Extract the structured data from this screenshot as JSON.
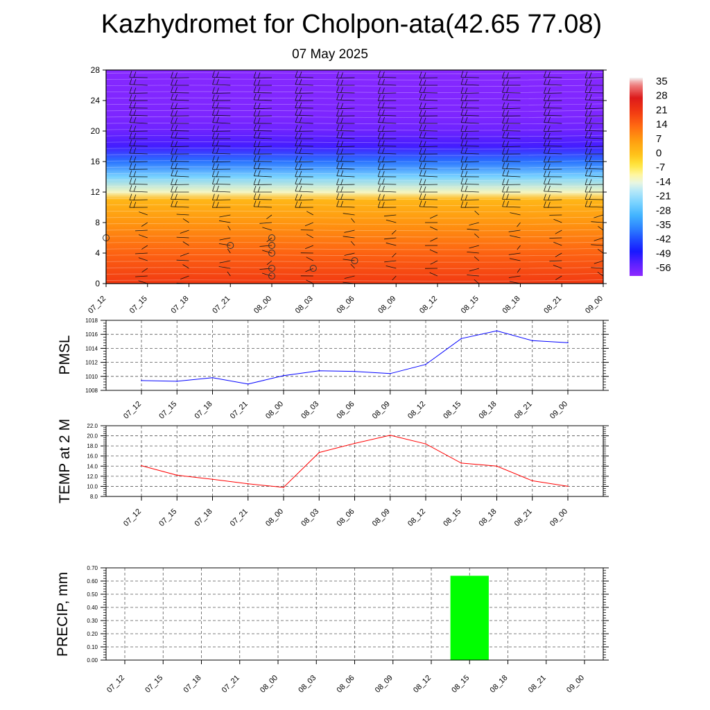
{
  "title": "Kazhydromet for Cholpon-ata(42.65 77.08)",
  "date": "07 May 2025",
  "colors": {
    "pmsl_line": "#0000ff",
    "temp_line": "#ff0000",
    "precip_bar": "#00ff00",
    "grid": "#555555",
    "axis": "#000000"
  },
  "chart_data": [
    {
      "type": "heatmap",
      "title": "",
      "x_labels": [
        "07_12",
        "07_15",
        "07_18",
        "07_21",
        "08_00",
        "08_03",
        "08_06",
        "08_09",
        "08_12",
        "08_15",
        "08_18",
        "08_21",
        "09_00"
      ],
      "y_ticks": [
        0,
        4,
        8,
        12,
        16,
        20,
        24,
        28
      ],
      "ylim": [
        0,
        28
      ],
      "colorbar": {
        "labels": [
          "35",
          "28",
          "21",
          "14",
          "7",
          "0",
          "-7",
          "-14",
          "-21",
          "-28",
          "-35",
          "-42",
          "-49",
          "-56"
        ],
        "range": [
          -60,
          38
        ]
      },
      "temperature_profile": [
        {
          "y": 0,
          "t": 21
        },
        {
          "y": 4,
          "t": 15
        },
        {
          "y": 8,
          "t": 8
        },
        {
          "y": 11,
          "t": 2
        },
        {
          "y": 12,
          "t": -12
        },
        {
          "y": 14,
          "t": -24
        },
        {
          "y": 16,
          "t": -38
        },
        {
          "y": 18,
          "t": -52
        },
        {
          "y": 20,
          "t": -56
        },
        {
          "y": 22,
          "t": -58
        },
        {
          "y": 28,
          "t": -59
        }
      ],
      "wind_barbs": true,
      "cloud_markers": [
        {
          "x": "07_12",
          "y": 6
        },
        {
          "x": "07_21",
          "y": 5
        },
        {
          "x": "08_00",
          "y": 6
        },
        {
          "x": "08_00",
          "y": 5
        },
        {
          "x": "08_00",
          "y": 4
        },
        {
          "x": "08_00",
          "y": 2
        },
        {
          "x": "08_00",
          "y": 1
        },
        {
          "x": "08_03",
          "y": 2
        },
        {
          "x": "08_06",
          "y": 3
        }
      ]
    },
    {
      "type": "line",
      "ylabel": "PMSL",
      "categories": [
        "07_12",
        "07_15",
        "07_18",
        "07_21",
        "08_00",
        "08_03",
        "08_06",
        "08_09",
        "08_12",
        "08_15",
        "08_18",
        "08_21",
        "09_00"
      ],
      "values": [
        1009.4,
        1009.3,
        1009.8,
        1008.9,
        1010.1,
        1010.8,
        1010.7,
        1010.4,
        1011.7,
        1015.4,
        1016.5,
        1015.1,
        1014.8
      ],
      "ylim": [
        1008,
        1018
      ],
      "y_ticks": [
        "1008",
        "1010",
        "1012",
        "1014",
        "1016",
        "1018"
      ],
      "grid": true
    },
    {
      "type": "line",
      "ylabel": "TEMP at 2 M",
      "categories": [
        "07_12",
        "07_15",
        "07_18",
        "07_21",
        "08_00",
        "08_03",
        "08_06",
        "08_09",
        "08_12",
        "08_15",
        "08_18",
        "08_21",
        "09_00"
      ],
      "values": [
        14.1,
        12.2,
        11.4,
        10.5,
        9.8,
        16.7,
        18.5,
        20.1,
        18.4,
        14.6,
        14.0,
        11.1,
        10.0
      ],
      "ylim": [
        8.0,
        22.0
      ],
      "y_ticks": [
        "8.0",
        "10.0",
        "12.0",
        "14.0",
        "16.0",
        "18.0",
        "20.0",
        "22.0"
      ],
      "grid": true
    },
    {
      "type": "bar",
      "ylabel": "PRECIP, mm",
      "categories": [
        "07_12",
        "07_15",
        "07_18",
        "07_21",
        "08_00",
        "08_03",
        "08_06",
        "08_09",
        "08_12",
        "08_15",
        "08_18",
        "08_21",
        "09_00"
      ],
      "values": [
        0,
        0,
        0,
        0,
        0,
        0,
        0,
        0,
        0,
        0.64,
        0,
        0,
        0
      ],
      "ylim": [
        0,
        0.7
      ],
      "y_ticks": [
        "0.00",
        "0.10",
        "0.20",
        "0.30",
        "0.40",
        "0.50",
        "0.60",
        "0.70"
      ],
      "grid": true
    }
  ]
}
